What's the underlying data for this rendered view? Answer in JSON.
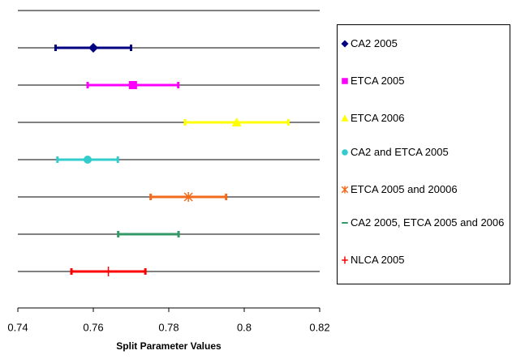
{
  "chart_data": {
    "type": "errorbar",
    "xlabel": "Split Parameter Values",
    "xlim": [
      0.74,
      0.82
    ],
    "xticks": [
      0.74,
      0.76,
      0.78,
      0.8,
      0.82
    ],
    "series": [
      {
        "name": "CA2 2005",
        "color": "#000080",
        "marker": "diamond",
        "value": 0.76,
        "error": 0.01
      },
      {
        "name": "ETCA 2005",
        "color": "#ff00ff",
        "marker": "square",
        "value": 0.7705,
        "error": 0.012
      },
      {
        "name": "ETCA 2006",
        "color": "#ffff00",
        "marker": "triangle",
        "value": 0.798,
        "error": 0.0137
      },
      {
        "name": "CA2 and ETCA 2005",
        "color": "#33cccc",
        "marker": "circle",
        "value": 0.7585,
        "error": 0.008
      },
      {
        "name": "ETCA 2005 and 20006",
        "color": "#f26a1b",
        "marker": "asterisk",
        "value": 0.7852,
        "error": 0.01
      },
      {
        "name": "CA2 2005, ETCA 2005 and 2006",
        "color": "#339966",
        "marker": "dash",
        "value": 0.7746,
        "error": 0.008
      },
      {
        "name": "NLCA 2005",
        "color": "#ff0000",
        "marker": "plus",
        "value": 0.764,
        "error": 0.0098
      }
    ]
  }
}
